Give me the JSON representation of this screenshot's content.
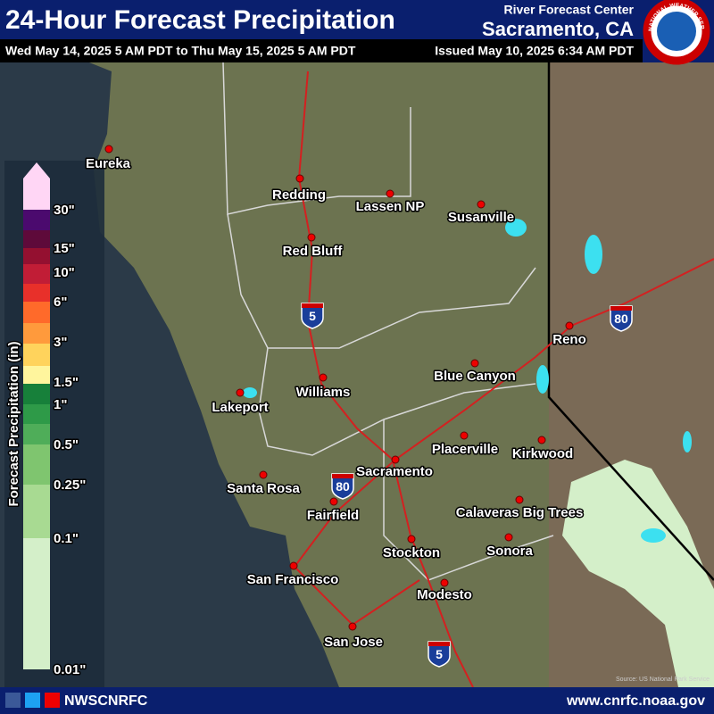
{
  "header": {
    "title": "24-Hour Forecast Precipitation",
    "subtitle": "Wed May 14, 2025 5 AM PDT to Thu May 15, 2025 5 AM PDT",
    "office_line1": "River Forecast Center",
    "office_line2": "Sacramento, CA",
    "issued": "Issued May 10, 2025 6:34 AM PDT",
    "logo_text": "NATIONAL WEATHER SERVICE"
  },
  "legend": {
    "title": "Forecast Precipitation (in)",
    "labels": [
      "30\"",
      "15\"",
      "10\"",
      "6\"",
      "3\"",
      "1.5\"",
      "1\"",
      "0.5\"",
      "0.25\"",
      "0.1\"",
      "0.01\""
    ],
    "colors": [
      "#d4efc9",
      "#a8da92",
      "#7fc56f",
      "#4fad59",
      "#2e9a48",
      "#17803a",
      "#fff59d",
      "#ffd35c",
      "#ff9a3c",
      "#ff6a2a",
      "#e8302a",
      "#c11d36",
      "#941030",
      "#5e0a3a",
      "#4b0a6e",
      "#ffd6f5"
    ]
  },
  "map": {
    "cities": [
      "Eureka",
      "Redding",
      "Lassen NP",
      "Susanville",
      "Red Bluff",
      "Reno",
      "Blue Canyon",
      "Williams",
      "Lakeport",
      "Placerville",
      "Kirkwood",
      "Sacramento",
      "Santa Rosa",
      "Fairfield",
      "Calaveras Big Trees",
      "Sonora",
      "Stockton",
      "San Francisco",
      "Modesto",
      "San Jose"
    ],
    "shields": [
      "5",
      "80",
      "80",
      "5"
    ],
    "source": "Source: US National Park Service"
  },
  "footer": {
    "social": "NWSCNRFC",
    "url": "www.cnrfc.noaa.gov"
  }
}
